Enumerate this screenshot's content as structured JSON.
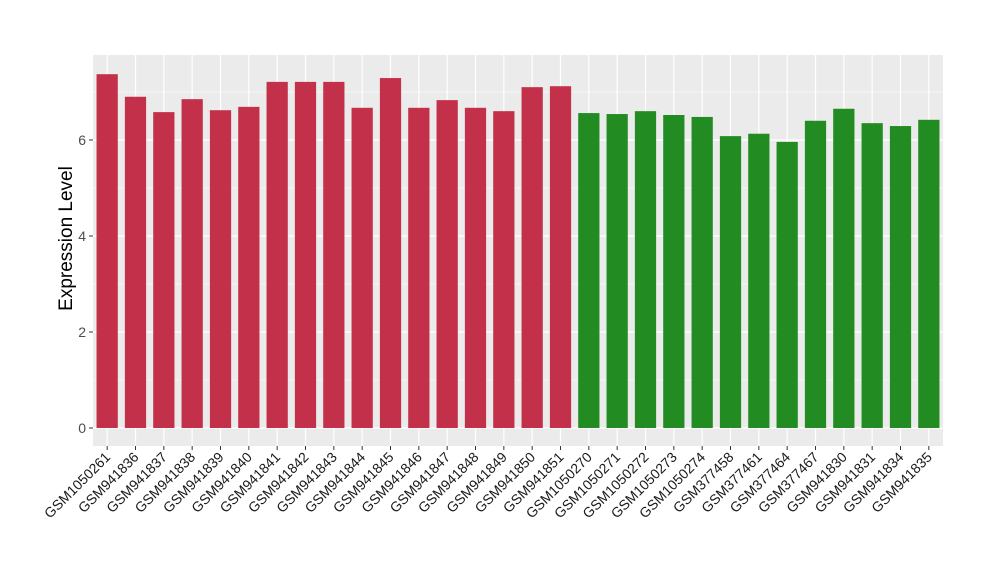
{
  "chart_data": {
    "type": "bar",
    "title": "",
    "xlabel": "",
    "ylabel": "Expression Level",
    "ylim": [
      -0.375,
      7.77
    ],
    "yticks": [
      0,
      2,
      4,
      6
    ],
    "grid": true,
    "categories": [
      "GSM1050261",
      "GSM941836",
      "GSM941837",
      "GSM941838",
      "GSM941839",
      "GSM941840",
      "GSM941841",
      "GSM941842",
      "GSM941843",
      "GSM941844",
      "GSM941845",
      "GSM941846",
      "GSM941847",
      "GSM941848",
      "GSM941849",
      "GSM941850",
      "GSM941851",
      "GSM1050270",
      "GSM1050271",
      "GSM1050272",
      "GSM1050273",
      "GSM1050274",
      "GSM377458",
      "GSM377461",
      "GSM377464",
      "GSM377467",
      "GSM941830",
      "GSM941831",
      "GSM941834",
      "GSM941835"
    ],
    "values": [
      7.37,
      6.9,
      6.58,
      6.85,
      6.62,
      6.69,
      7.21,
      7.21,
      7.21,
      6.67,
      7.29,
      6.67,
      6.83,
      6.67,
      6.6,
      7.1,
      7.12,
      6.56,
      6.54,
      6.6,
      6.52,
      6.48,
      6.08,
      6.13,
      5.96,
      6.4,
      6.65,
      6.35,
      6.29,
      6.42
    ],
    "groups": [
      0,
      0,
      0,
      0,
      0,
      0,
      0,
      0,
      0,
      0,
      0,
      0,
      0,
      0,
      0,
      0,
      0,
      1,
      1,
      1,
      1,
      1,
      1,
      1,
      1,
      1,
      1,
      1,
      1,
      1
    ],
    "colors": [
      "#C33049",
      "#228B22"
    ],
    "panel_bg": "#EBEBEB"
  }
}
